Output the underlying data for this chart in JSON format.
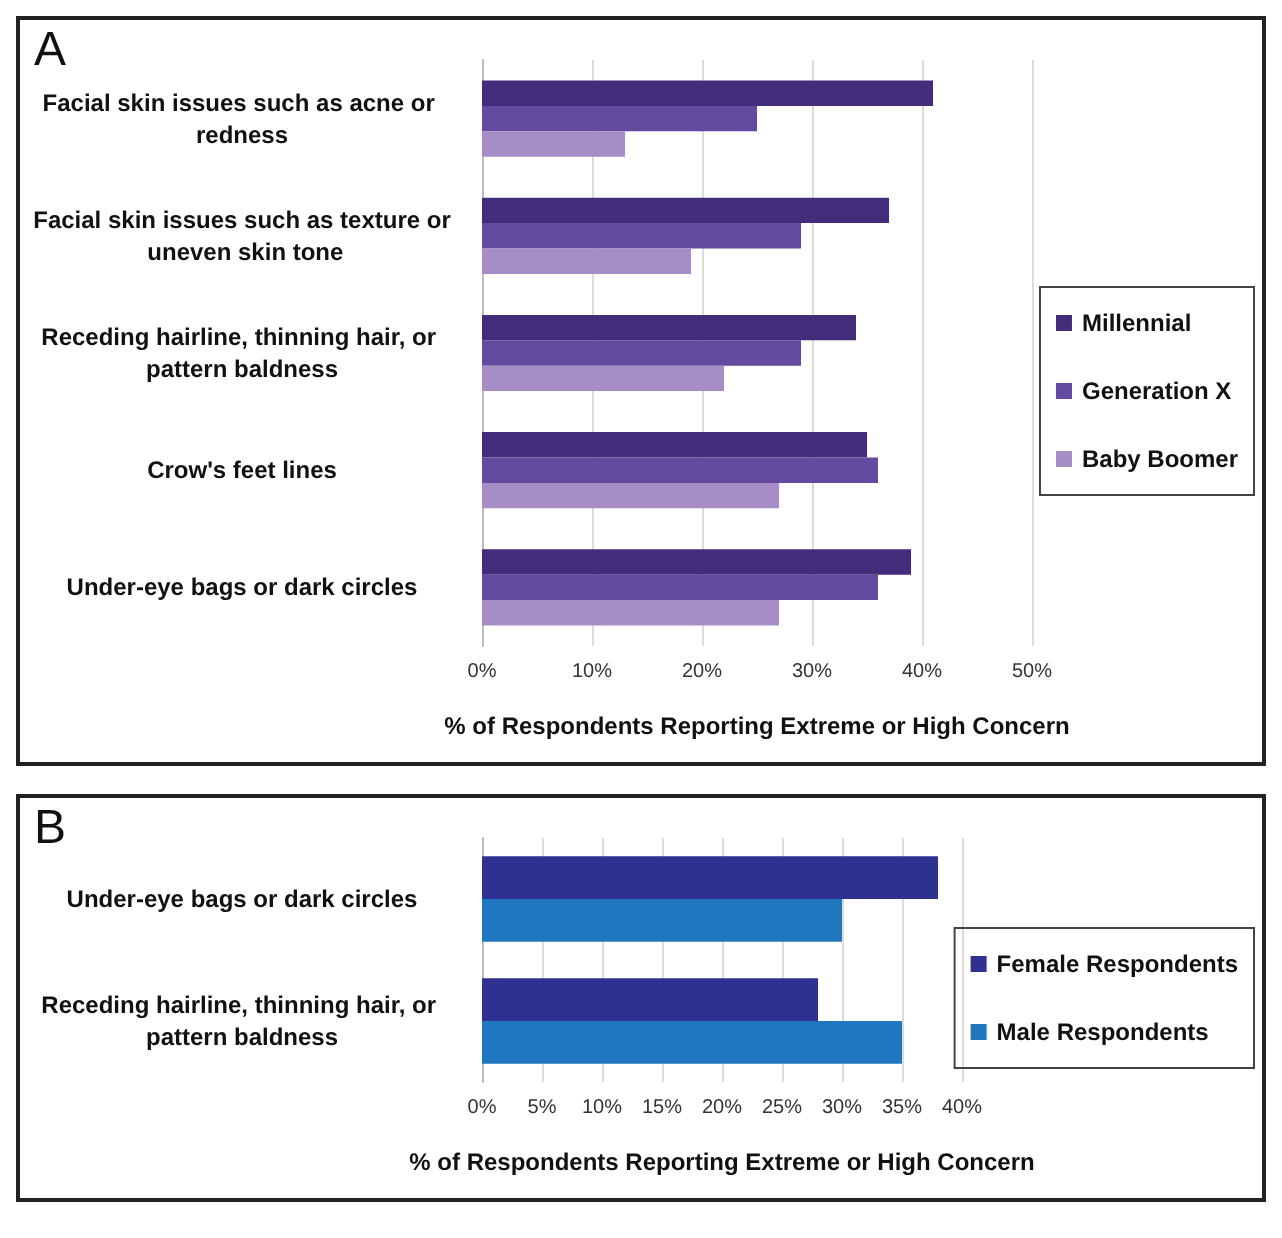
{
  "chart_data": [
    {
      "type": "bar",
      "orientation": "horizontal",
      "title": "A",
      "xlabel": "% of Respondents Reporting Extreme or High Concern",
      "categories": [
        "Facial skin issues such as acne or redness",
        "Facial skin issues such as texture or uneven skin tone",
        "Receding hairline, thinning hair, or pattern baldness",
        "Crow's feet lines",
        "Under-eye bags or dark circles"
      ],
      "series": [
        {
          "name": "Millennial",
          "color": "#432c7a",
          "values": [
            41,
            37,
            34,
            35,
            39
          ]
        },
        {
          "name": "Generation X",
          "color": "#624a9e",
          "values": [
            25,
            29,
            29,
            36,
            36
          ]
        },
        {
          "name": "Baby Boomer",
          "color": "#a78dc5",
          "values": [
            13,
            19,
            22,
            27,
            27
          ]
        }
      ],
      "xlim": [
        0,
        50
      ],
      "xticks": [
        {
          "value": 0,
          "label": "0%"
        },
        {
          "value": 10,
          "label": "10%"
        },
        {
          "value": 20,
          "label": "20%"
        },
        {
          "value": 30,
          "label": "30%"
        },
        {
          "value": 40,
          "label": "40%"
        },
        {
          "value": 50,
          "label": "50%"
        }
      ],
      "grid": "x",
      "legend": "right"
    },
    {
      "type": "bar",
      "orientation": "horizontal",
      "title": "B",
      "xlabel": "% of Respondents Reporting Extreme or High Concern",
      "categories": [
        "Under-eye bags or dark circles",
        "Receding hairline, thinning hair, or pattern baldness"
      ],
      "series": [
        {
          "name": "Female Respondents",
          "color": "#2e3190",
          "values": [
            38,
            28
          ]
        },
        {
          "name": "Male Respondents",
          "color": "#2077c0",
          "values": [
            30,
            35
          ]
        }
      ],
      "xlim": [
        0,
        40
      ],
      "xticks": [
        {
          "value": 0,
          "label": "0%"
        },
        {
          "value": 5,
          "label": "5%"
        },
        {
          "value": 10,
          "label": "10%"
        },
        {
          "value": 15,
          "label": "15%"
        },
        {
          "value": 20,
          "label": "20%"
        },
        {
          "value": 25,
          "label": "25%"
        },
        {
          "value": 30,
          "label": "30%"
        },
        {
          "value": 35,
          "label": "35%"
        },
        {
          "value": 40,
          "label": "40%"
        }
      ],
      "grid": "x",
      "legend": "right"
    }
  ]
}
